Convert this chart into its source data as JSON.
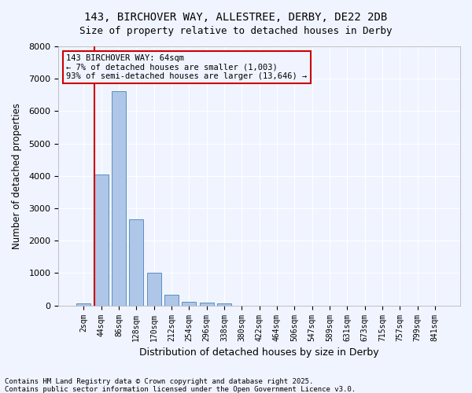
{
  "title_line1": "143, BIRCHOVER WAY, ALLESTREE, DERBY, DE22 2DB",
  "title_line2": "Size of property relative to detached houses in Derby",
  "xlabel": "Distribution of detached houses by size in Derby",
  "ylabel": "Number of detached properties",
  "categories": [
    "2sqm",
    "44sqm",
    "86sqm",
    "128sqm",
    "170sqm",
    "212sqm",
    "254sqm",
    "296sqm",
    "338sqm",
    "380sqm",
    "422sqm",
    "464sqm",
    "506sqm",
    "547sqm",
    "589sqm",
    "631sqm",
    "673sqm",
    "715sqm",
    "757sqm",
    "799sqm",
    "841sqm"
  ],
  "values": [
    60,
    4050,
    6620,
    2650,
    1000,
    340,
    120,
    100,
    65,
    0,
    0,
    0,
    0,
    0,
    0,
    0,
    0,
    0,
    0,
    0,
    0
  ],
  "bar_color": "#aec6e8",
  "bar_edge_color": "#5a8fc0",
  "vline_x": 1,
  "vline_color": "#cc0000",
  "annotation_title": "143 BIRCHOVER WAY: 64sqm",
  "annotation_line2": "← 7% of detached houses are smaller (1,003)",
  "annotation_line3": "93% of semi-detached houses are larger (13,646) →",
  "annotation_box_color": "#cc0000",
  "ylim": [
    0,
    8000
  ],
  "yticks": [
    0,
    1000,
    2000,
    3000,
    4000,
    5000,
    6000,
    7000,
    8000
  ],
  "bg_color": "#f0f4ff",
  "footer_line1": "Contains HM Land Registry data © Crown copyright and database right 2025.",
  "footer_line2": "Contains public sector information licensed under the Open Government Licence v3.0."
}
